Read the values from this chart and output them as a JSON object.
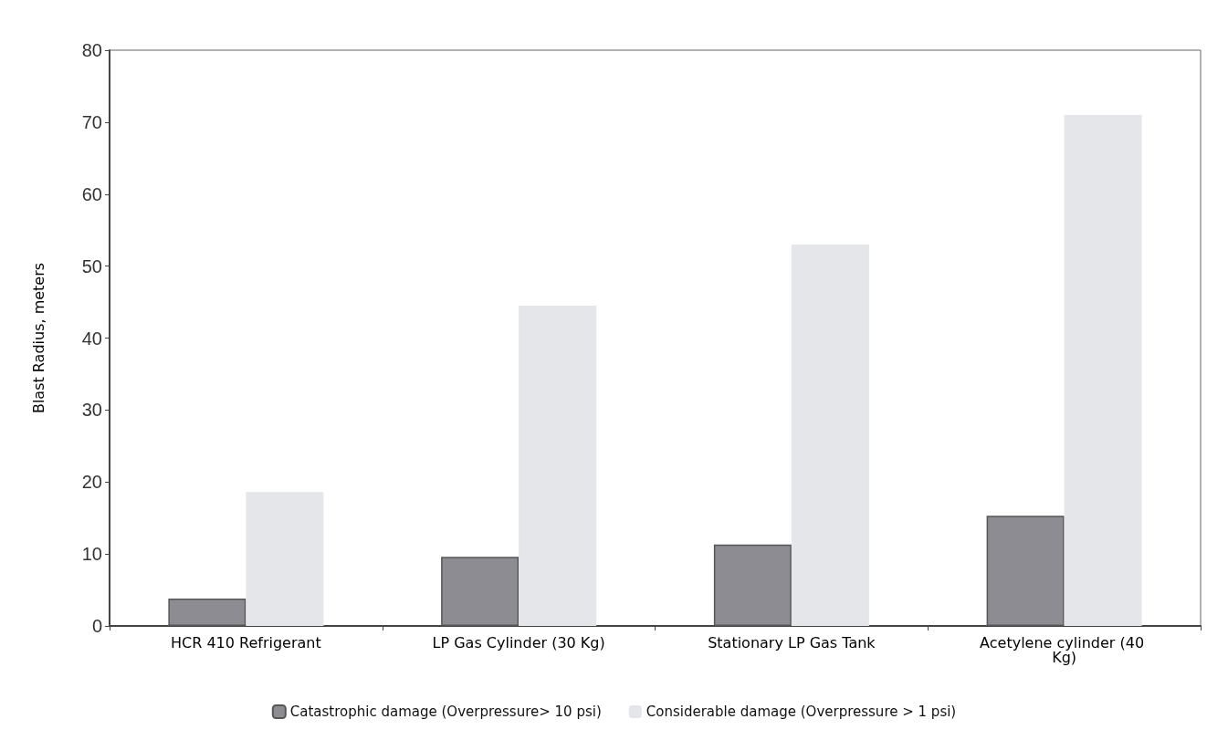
{
  "chart_data": {
    "type": "bar",
    "ylabel": "Blast Radius, meters",
    "categories": [
      "HCR 410 Refrigerant",
      "LP Gas Cylinder (30 Kg)",
      "Stationary LP Gas Tank",
      "Acetylene cylinder (40 Kg)"
    ],
    "series": [
      {
        "name": "Catastrophic damage (Overpressure> 10 psi)",
        "color": "#8e8c93",
        "values": [
          3.8,
          9.6,
          11.3,
          15.3
        ]
      },
      {
        "name": "Considerable damage (Overpressure > 1 psi)",
        "color": "#e4e6e9",
        "values": [
          18.6,
          44.5,
          53,
          71
        ]
      }
    ],
    "ylim": [
      0,
      80
    ],
    "yticks": [
      0,
      10,
      20,
      30,
      40,
      50,
      60,
      70,
      80
    ],
    "grid": false,
    "legend": "bottom"
  }
}
